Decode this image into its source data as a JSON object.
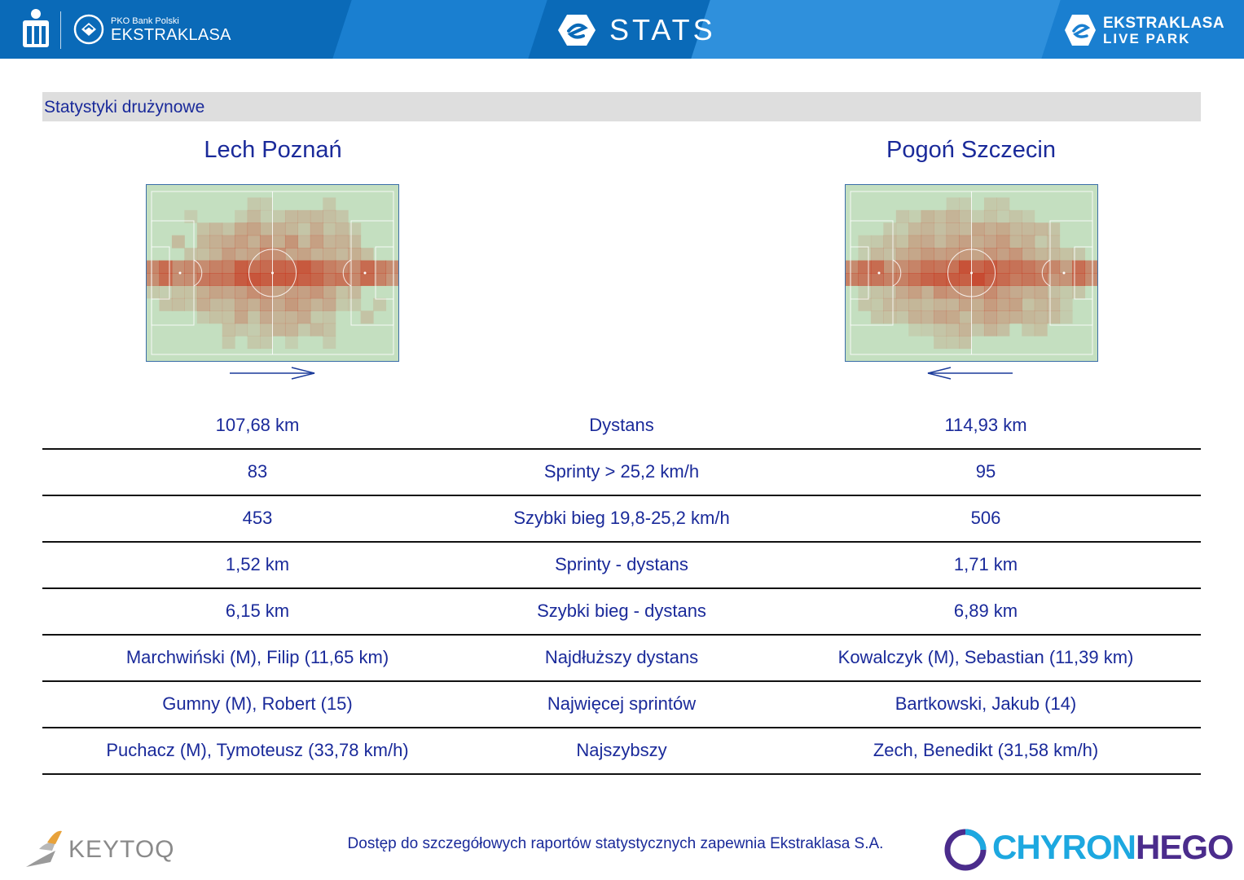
{
  "header": {
    "pko_small": "PKO Bank Polski",
    "brand": "EKSTRAKLASA",
    "stats_title": "STATS",
    "live_park_line1": "EKSTRAKLASA",
    "live_park_line2": "LIVE PARK",
    "colors": {
      "header_bg": "#0a6ab8",
      "text": "#1a2a9a"
    }
  },
  "section": {
    "title": "Statystyki drużynowe"
  },
  "teams": {
    "home": {
      "name": "Lech Poznań",
      "attack_direction": "right"
    },
    "away": {
      "name": "Pogoń Szczecin",
      "attack_direction": "left"
    }
  },
  "stats": [
    {
      "home": "107,68 km",
      "label": "Dystans",
      "away": "114,93 km"
    },
    {
      "home": "83",
      "label": "Sprinty > 25,2 km/h",
      "away": "95"
    },
    {
      "home": "453",
      "label": "Szybki bieg 19,8-25,2 km/h",
      "away": "506"
    },
    {
      "home": "1,52 km",
      "label": "Sprinty - dystans",
      "away": "1,71 km"
    },
    {
      "home": "6,15 km",
      "label": "Szybki bieg - dystans",
      "away": "6,89 km"
    },
    {
      "home": "Marchwiński (M), Filip (11,65 km)",
      "label": "Najdłuższy dystans",
      "away": "Kowalczyk (M), Sebastian (11,39 km)"
    },
    {
      "home": "Gumny (M), Robert (15)",
      "label": "Najwięcej sprintów",
      "away": "Bartkowski, Jakub (14)"
    },
    {
      "home": "Puchacz (M), Tymoteusz (33,78 km/h)",
      "label": "Najszybszy",
      "away": "Zech, Benedikt (31,58 km/h)"
    }
  ],
  "footer": {
    "left_logo": "KEYTOQ",
    "note": "Dostęp do szczegółowych raportów statystycznych zapewnia Ekstraklasa S.A.",
    "right_logo_a": "CHYRON",
    "right_logo_b": "HEGO"
  }
}
